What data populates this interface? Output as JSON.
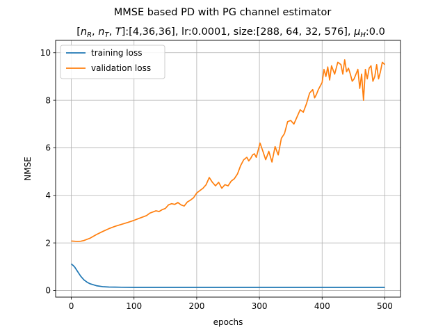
{
  "chart_data": {
    "type": "line",
    "title": "MMSE based PD with PG channel estimator",
    "subtitle": "[n_R, n_T, T]:[4,36,36], lr:0.0001, size:[288, 64, 32, 576], μ_H:0.0",
    "subtitle_math": {
      "bracket_open": "[",
      "nR": "n",
      "nR_sub": "R",
      "nT": "n",
      "nT_sub": "T",
      "T": "T",
      "rest": "]:[4,36,36], lr:0.0001, size:[288, 64, 32, 576], ",
      "mu": "μ",
      "mu_sub": "H",
      "mu_val": ":0.0"
    },
    "xlabel": "epochs",
    "ylabel": "NMSE",
    "xlim": [
      -25,
      525
    ],
    "ylim": [
      -0.28,
      10.52
    ],
    "xticks": [
      0,
      100,
      200,
      300,
      400,
      500
    ],
    "yticks": [
      0,
      2,
      4,
      6,
      8,
      10
    ],
    "grid": true,
    "legend_position": "upper-left",
    "series": [
      {
        "name": "training loss",
        "color": "#1f77b4",
        "x": [
          0,
          5,
          10,
          15,
          20,
          25,
          30,
          40,
          50,
          60,
          70,
          80,
          100,
          150,
          200,
          300,
          400,
          500
        ],
        "values": [
          1.12,
          1.0,
          0.8,
          0.6,
          0.45,
          0.35,
          0.28,
          0.2,
          0.16,
          0.145,
          0.14,
          0.135,
          0.13,
          0.13,
          0.13,
          0.13,
          0.13,
          0.13
        ]
      },
      {
        "name": "validation loss",
        "color": "#ff7f0e",
        "x": [
          0,
          5,
          10,
          15,
          20,
          30,
          40,
          50,
          60,
          70,
          80,
          90,
          100,
          110,
          120,
          125,
          130,
          135,
          140,
          145,
          150,
          155,
          160,
          165,
          170,
          175,
          180,
          185,
          190,
          195,
          200,
          205,
          210,
          215,
          220,
          225,
          230,
          235,
          240,
          245,
          250,
          255,
          260,
          265,
          270,
          275,
          280,
          283,
          286,
          289,
          292,
          295,
          298,
          301,
          305,
          310,
          315,
          320,
          325,
          330,
          335,
          340,
          345,
          350,
          355,
          360,
          365,
          370,
          375,
          380,
          385,
          388,
          391,
          394,
          397,
          400,
          403,
          406,
          409,
          412,
          415,
          420,
          425,
          430,
          433,
          436,
          439,
          442,
          445,
          448,
          451,
          454,
          457,
          460,
          463,
          466,
          469,
          472,
          475,
          478,
          481,
          484,
          487,
          490,
          493,
          496,
          500
        ],
        "values": [
          2.08,
          2.07,
          2.06,
          2.07,
          2.1,
          2.2,
          2.35,
          2.48,
          2.6,
          2.7,
          2.78,
          2.86,
          2.95,
          3.05,
          3.15,
          3.25,
          3.3,
          3.35,
          3.32,
          3.4,
          3.45,
          3.6,
          3.65,
          3.62,
          3.7,
          3.6,
          3.55,
          3.72,
          3.8,
          3.9,
          4.1,
          4.2,
          4.3,
          4.45,
          4.75,
          4.55,
          4.4,
          4.55,
          4.3,
          4.45,
          4.4,
          4.6,
          4.7,
          4.9,
          5.25,
          5.5,
          5.6,
          5.45,
          5.55,
          5.7,
          5.75,
          5.6,
          5.9,
          6.2,
          5.9,
          5.5,
          5.85,
          5.4,
          6.05,
          5.7,
          6.4,
          6.6,
          7.1,
          7.15,
          7.0,
          7.3,
          7.6,
          7.5,
          7.85,
          8.3,
          8.45,
          8.1,
          8.25,
          8.45,
          8.6,
          8.75,
          9.3,
          9.0,
          9.4,
          8.85,
          9.45,
          9.1,
          9.6,
          9.5,
          9.1,
          9.7,
          9.2,
          9.35,
          9.1,
          8.8,
          8.9,
          9.1,
          9.3,
          8.5,
          9.1,
          8.0,
          9.3,
          8.9,
          9.35,
          9.45,
          8.8,
          9.0,
          9.5,
          8.9,
          9.2,
          9.6,
          9.5
        ]
      }
    ]
  }
}
